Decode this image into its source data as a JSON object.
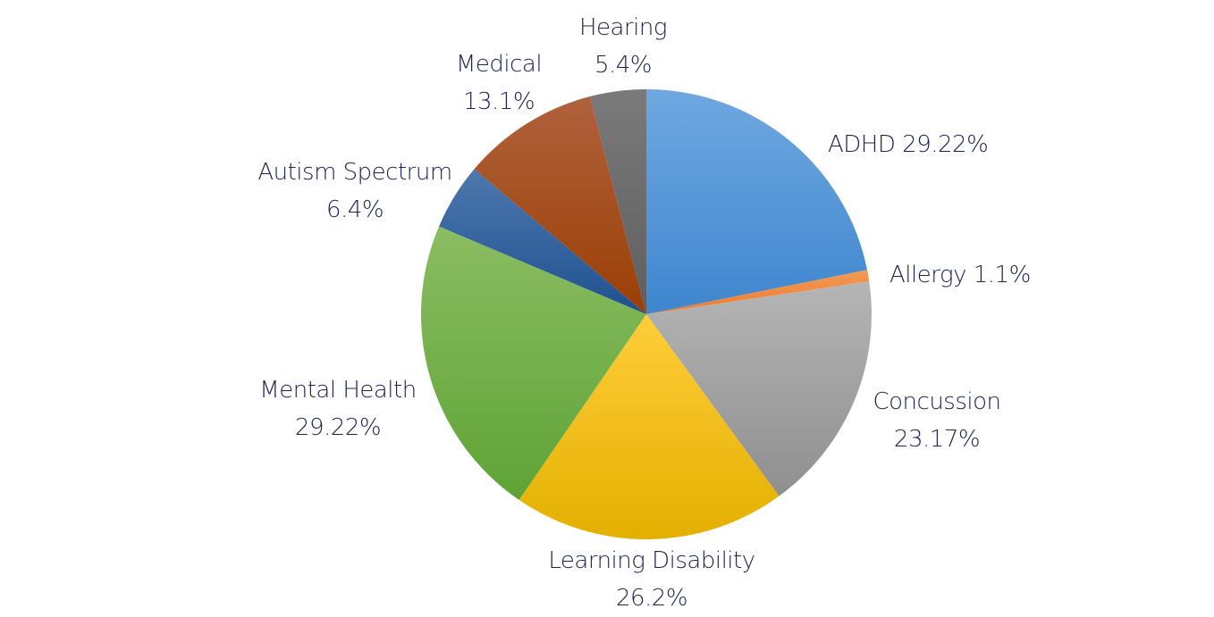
{
  "chart_data": {
    "type": "pie",
    "title": "",
    "start_angle_deg": 0,
    "direction": "clockwise",
    "slices": [
      {
        "name": "ADHD",
        "value": 29.22,
        "value_text": "29.22%",
        "color_light": "#6fa8e0",
        "color_dark": "#3f86cf"
      },
      {
        "name": "Allergy",
        "value": 1.1,
        "value_text": "1.1%",
        "color_light": "#f39a55",
        "color_dark": "#ee7a2e"
      },
      {
        "name": "Concussion",
        "value": 23.17,
        "value_text": "23.17%",
        "color_light": "#b5b5b5",
        "color_dark": "#8f8f8f"
      },
      {
        "name": "Learning Disability",
        "value": 26.2,
        "value_text": "26.2%",
        "color_light": "#ffcd3a",
        "color_dark": "#e3b000"
      },
      {
        "name": "Mental Health",
        "value": 29.22,
        "value_text": "29.22%",
        "color_light": "#8bbd62",
        "color_dark": "#5fa336"
      },
      {
        "name": "Autism Spectrum",
        "value": 6.4,
        "value_text": "6.4%",
        "color_light": "#4d78ad",
        "color_dark": "#1f5190"
      },
      {
        "name": "Medical",
        "value": 13.1,
        "value_text": "13.1%",
        "color_light": "#b0623c",
        "color_dark": "#9b3e05"
      },
      {
        "name": "Hearing",
        "value": 5.4,
        "value_text": "5.4%",
        "color_light": "#7a7a7a",
        "color_dark": "#5e5e5e"
      }
    ]
  }
}
